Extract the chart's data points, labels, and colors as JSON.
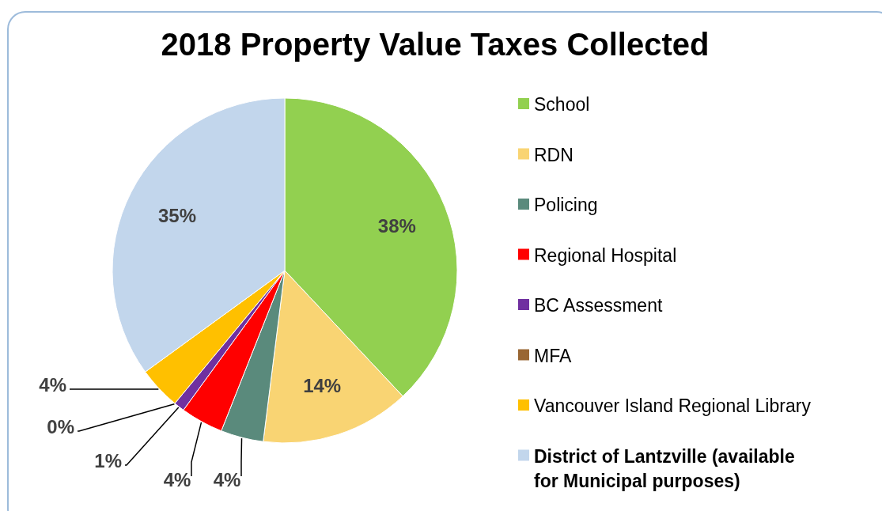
{
  "chart_data": {
    "type": "pie",
    "title": "2018 Property Value Taxes Collected",
    "categories": [
      "School",
      "RDN",
      "Policing",
      "Regional Hospital",
      "BC Assessment",
      "MFA",
      "Vancouver Island Regional Library",
      "District of Lantzville (available for Municipal purposes)"
    ],
    "values": [
      38,
      14,
      4,
      4,
      1,
      0,
      4,
      35
    ],
    "colors": [
      "#92d050",
      "#f9d473",
      "#5a8a7c",
      "#ff0000",
      "#7030a0",
      "#996633",
      "#ffc000",
      "#c2d6ec"
    ],
    "value_labels": [
      "38%",
      "14%",
      "4%",
      "4%",
      "1%",
      "0%",
      "4%",
      "35%"
    ],
    "legend": "right"
  }
}
